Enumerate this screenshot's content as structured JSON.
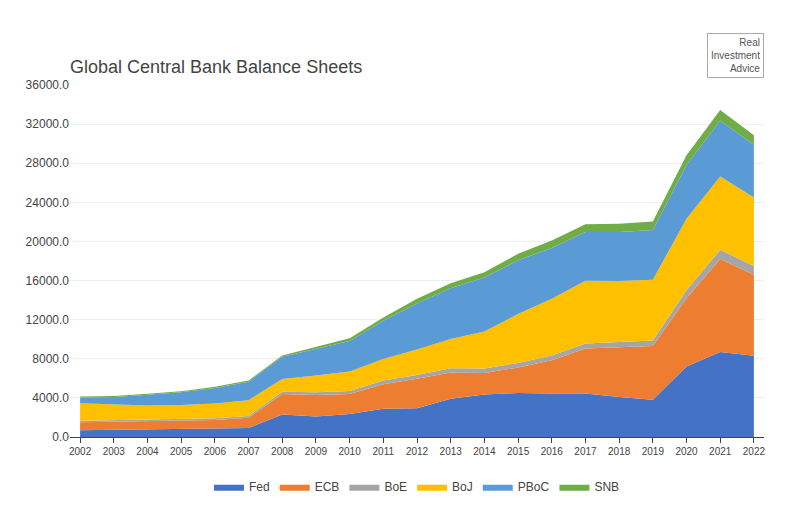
{
  "chart_data": {
    "type": "area",
    "title": "Global Central Bank Balance Sheets",
    "stacked": true,
    "x": [
      2002,
      2003,
      2004,
      2005,
      2006,
      2007,
      2008,
      2009,
      2010,
      2011,
      2012,
      2013,
      2014,
      2015,
      2016,
      2017,
      2018,
      2019,
      2020,
      2021,
      2022
    ],
    "series": [
      {
        "name": "Fed",
        "color": "#4472c4",
        "values": [
          700,
          730,
          760,
          790,
          850,
          920,
          2300,
          2100,
          2350,
          2900,
          2950,
          3900,
          4350,
          4500,
          4450,
          4450,
          4100,
          3800,
          7200,
          8700,
          8300
        ]
      },
      {
        "name": "ECB",
        "color": "#ed7d31",
        "values": [
          800,
          820,
          850,
          870,
          900,
          1050,
          2100,
          2200,
          2050,
          2500,
          3000,
          2700,
          2200,
          2600,
          3400,
          4600,
          5100,
          5500,
          7000,
          9500,
          8300
        ]
      },
      {
        "name": "BoE",
        "color": "#a5a5a5",
        "values": [
          150,
          150,
          160,
          160,
          170,
          190,
          220,
          280,
          310,
          380,
          400,
          420,
          450,
          480,
          490,
          520,
          560,
          580,
          820,
          950,
          900
        ]
      },
      {
        "name": "BoJ",
        "color": "#ffc000",
        "values": [
          1800,
          1600,
          1450,
          1450,
          1500,
          1600,
          1300,
          1700,
          2000,
          2200,
          2600,
          3000,
          3800,
          5000,
          5800,
          6400,
          6200,
          6200,
          7300,
          7500,
          7000
        ]
      },
      {
        "name": "PBoC",
        "color": "#5b9bd5",
        "values": [
          600,
          800,
          1100,
          1300,
          1600,
          1900,
          2300,
          2700,
          3100,
          3900,
          4700,
          5200,
          5500,
          5500,
          5200,
          5000,
          5000,
          5100,
          5500,
          5700,
          5400
        ]
      },
      {
        "name": "SNB",
        "color": "#70ad47",
        "values": [
          80,
          90,
          100,
          100,
          110,
          110,
          120,
          200,
          280,
          350,
          480,
          500,
          560,
          650,
          750,
          800,
          850,
          870,
          1000,
          1100,
          950
        ]
      }
    ],
    "xlim": [
      2001.7,
      2022.3
    ],
    "xticks": [
      2002,
      2003,
      2004,
      2005,
      2006,
      2007,
      2008,
      2009,
      2010,
      2011,
      2012,
      2013,
      2014,
      2015,
      2016,
      2017,
      2018,
      2019,
      2020,
      2021,
      2022
    ],
    "ylim": [
      0,
      36000
    ],
    "yticks": [
      {
        "value": 0,
        "label": "0.0"
      },
      {
        "value": 4000,
        "label": "4000.0"
      },
      {
        "value": 8000,
        "label": "8000.0"
      },
      {
        "value": 12000,
        "label": "12000.0"
      },
      {
        "value": 16000,
        "label": "16000.0"
      },
      {
        "value": 20000,
        "label": "20000.0"
      },
      {
        "value": 24000,
        "label": "24000.0"
      },
      {
        "value": 28000,
        "label": "28000.0"
      },
      {
        "value": 32000,
        "label": "32000.0"
      },
      {
        "value": 36000,
        "label": "36000.0"
      }
    ],
    "grid": true,
    "legend": "bottom",
    "annotations": [
      "Real\nInvestment\nAdvice"
    ]
  }
}
